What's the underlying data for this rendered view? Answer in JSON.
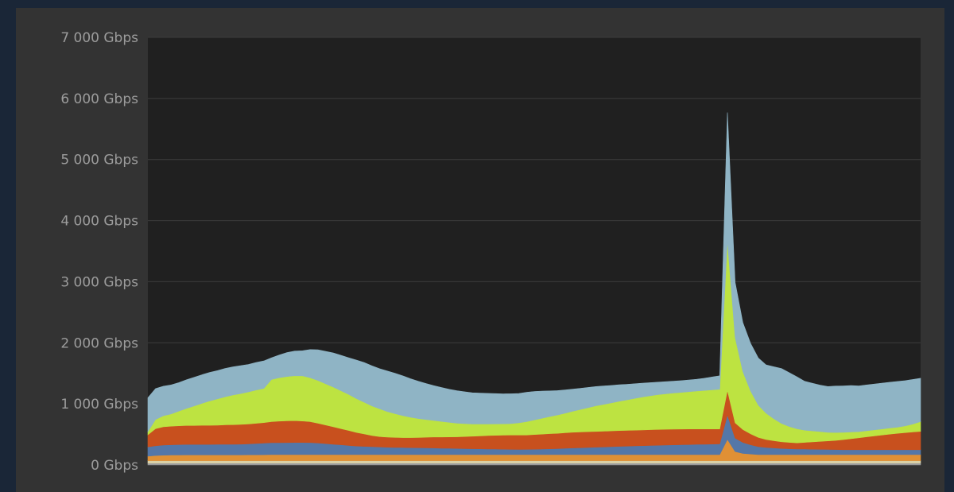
{
  "chart_data": {
    "type": "area",
    "stacked": true,
    "title": "",
    "xlabel": "",
    "ylabel": "",
    "ylim": [
      0,
      7000
    ],
    "y_ticks": [
      0,
      1000,
      2000,
      3000,
      4000,
      5000,
      6000,
      7000
    ],
    "y_tick_labels": [
      "0 Gbps",
      "1 000 Gbps",
      "2 000 Gbps",
      "3 000 Gbps",
      "4 000 Gbps",
      "5 000 Gbps",
      "6 000 Gbps",
      "7 000 Gbps"
    ],
    "grid": true,
    "legend": "none",
    "background": "#202020",
    "x": [
      0,
      1,
      2,
      3,
      4,
      5,
      6,
      7,
      8,
      9,
      10,
      11,
      12,
      13,
      14,
      15,
      16,
      17,
      18,
      19,
      20,
      21,
      22,
      23,
      24,
      25,
      26,
      27,
      28,
      29,
      30,
      31,
      32,
      33,
      34,
      35,
      36,
      37,
      38,
      39,
      40,
      41,
      42,
      43,
      44,
      45,
      46,
      47,
      48,
      49,
      50,
      51,
      52,
      53,
      54,
      55,
      56,
      57,
      58,
      59,
      60,
      61,
      62,
      63,
      64,
      65,
      66,
      67,
      68,
      69,
      70,
      71,
      72,
      73,
      74,
      75,
      76,
      77,
      78,
      79,
      80,
      81,
      82,
      83,
      84,
      85,
      86,
      87,
      88,
      89,
      90,
      91,
      92,
      93,
      94,
      95,
      96,
      97,
      98,
      99,
      100
    ],
    "series": [
      {
        "color": "#9a9a9a",
        "values": [
          30,
          30,
          30,
          30,
          30,
          30,
          30,
          30,
          30,
          30,
          30,
          30,
          30,
          30,
          30,
          30,
          30,
          30,
          30,
          30,
          30,
          30,
          30,
          30,
          30,
          30,
          30,
          30,
          30,
          30,
          30,
          30,
          30,
          30,
          30,
          30,
          30,
          30,
          30,
          30,
          30,
          30,
          30,
          30,
          30,
          30,
          30,
          30,
          30,
          30,
          30,
          30,
          30,
          30,
          30,
          30,
          30,
          30,
          30,
          30,
          30,
          30,
          30,
          30,
          30,
          30,
          30,
          30,
          30,
          30,
          30,
          30,
          30,
          30,
          30,
          30,
          30,
          30,
          30,
          30,
          30,
          30,
          30,
          30,
          30,
          30,
          30,
          30,
          30,
          30,
          30,
          30,
          30,
          30,
          30,
          30,
          30,
          30,
          30,
          30,
          30
        ]
      },
      {
        "color": "#d9d1a7",
        "values": [
          40,
          40,
          40,
          40,
          40,
          40,
          40,
          40,
          40,
          40,
          40,
          40,
          40,
          40,
          40,
          40,
          40,
          40,
          40,
          40,
          40,
          40,
          40,
          40,
          40,
          40,
          40,
          40,
          40,
          40,
          40,
          40,
          40,
          40,
          40,
          40,
          40,
          40,
          40,
          40,
          40,
          40,
          40,
          40,
          40,
          40,
          40,
          40,
          40,
          40,
          40,
          40,
          40,
          40,
          40,
          40,
          40,
          40,
          40,
          40,
          40,
          40,
          40,
          40,
          40,
          40,
          40,
          40,
          40,
          40,
          40,
          40,
          40,
          40,
          40,
          40,
          40,
          40,
          40,
          40,
          40,
          40,
          40,
          40,
          40,
          40,
          40,
          40,
          40,
          40,
          40,
          40,
          40,
          40,
          40,
          40,
          40,
          40,
          40,
          40,
          40
        ]
      },
      {
        "color": "#e09035",
        "values": [
          75,
          85,
          90,
          92,
          94,
          95,
          95,
          95,
          95,
          95,
          95,
          95,
          95,
          96,
          97,
          98,
          100,
          100,
          100,
          100,
          100,
          100,
          100,
          100,
          100,
          100,
          100,
          100,
          100,
          100,
          100,
          100,
          100,
          100,
          100,
          100,
          100,
          100,
          100,
          100,
          100,
          100,
          100,
          100,
          100,
          100,
          100,
          100,
          100,
          100,
          100,
          100,
          100,
          100,
          100,
          100,
          100,
          100,
          100,
          100,
          100,
          100,
          100,
          100,
          100,
          100,
          100,
          100,
          100,
          100,
          100,
          100,
          100,
          100,
          100,
          350,
          150,
          120,
          110,
          100,
          100,
          100,
          100,
          100,
          100,
          100,
          100,
          100,
          100,
          100,
          100,
          100,
          100,
          100,
          100,
          100,
          100,
          100,
          100,
          100,
          100
        ]
      },
      {
        "color": "#5477a8",
        "values": [
          150,
          160,
          165,
          168,
          170,
          172,
          172,
          172,
          172,
          173,
          174,
          175,
          176,
          180,
          185,
          190,
          195,
          196,
          197,
          198,
          198,
          197,
          190,
          180,
          170,
          160,
          150,
          140,
          135,
          130,
          125,
          120,
          118,
          116,
          114,
          112,
          110,
          108,
          105,
          103,
          100,
          98,
          96,
          94,
          92,
          90,
          88,
          86,
          85,
          86,
          88,
          90,
          94,
          98,
          103,
          108,
          112,
          117,
          121,
          125,
          130,
          135,
          138,
          142,
          146,
          150,
          153,
          156,
          159,
          162,
          165,
          168,
          170,
          172,
          175,
          400,
          220,
          180,
          150,
          130,
          118,
          108,
          100,
          95,
          92,
          90,
          88,
          86,
          84,
          82,
          80,
          80,
          80,
          80,
          80,
          80,
          80,
          80,
          80,
          80,
          80
        ]
      },
      {
        "color": "#c8501e",
        "values": [
          200,
          280,
          300,
          305,
          308,
          310,
          310,
          312,
          312,
          314,
          318,
          320,
          322,
          325,
          330,
          335,
          345,
          352,
          356,
          358,
          352,
          342,
          325,
          305,
          285,
          265,
          245,
          222,
          202,
          182,
          170,
          165,
          163,
          162,
          163,
          168,
          174,
          180,
          183,
          186,
          190,
          198,
          205,
          212,
          220,
          225,
          230,
          235,
          235,
          235,
          240,
          245,
          248,
          250,
          255,
          258,
          258,
          258,
          258,
          258,
          258,
          258,
          258,
          258,
          258,
          258,
          258,
          258,
          258,
          256,
          254,
          252,
          250,
          248,
          245,
          400,
          250,
          210,
          180,
          150,
          130,
          120,
          110,
          105,
          100,
          110,
          120,
          130,
          140,
          150,
          165,
          180,
          195,
          210,
          225,
          240,
          255,
          268,
          280,
          290,
          300
        ]
      },
      {
        "color": "#bde341",
        "values": [
          50,
          150,
          180,
          200,
          240,
          280,
          320,
          360,
          400,
          430,
          460,
          485,
          505,
          525,
          545,
          560,
          690,
          710,
          725,
          735,
          740,
          720,
          700,
          675,
          650,
          620,
          590,
          555,
          520,
          485,
          455,
          420,
          390,
          360,
          335,
          310,
          290,
          270,
          255,
          240,
          225,
          212,
          200,
          195,
          190,
          188,
          186,
          185,
          200,
          220,
          240,
          260,
          280,
          300,
          320,
          345,
          370,
          395,
          420,
          440,
          460,
          480,
          500,
          520,
          540,
          555,
          570,
          580,
          590,
          600,
          610,
          620,
          630,
          640,
          650,
          2450,
          1400,
          950,
          700,
          530,
          430,
          360,
          300,
          260,
          230,
          200,
          180,
          160,
          140,
          130,
          120,
          110,
          100,
          100,
          100,
          100,
          100,
          100,
          110,
          130,
          160
        ]
      },
      {
        "color": "#8fb4c5",
        "values": [
          555,
          505,
          485,
          475,
          466,
          468,
          468,
          468,
          466,
          463,
          463,
          460,
          457,
          450,
          450,
          450,
          355,
          373,
          392,
          404,
          410,
          460,
          500,
          530,
          560,
          580,
          600,
          630,
          650,
          655,
          655,
          663,
          660,
          650,
          630,
          610,
          590,
          570,
          555,
          540,
          530,
          520,
          510,
          505,
          500,
          495,
          490,
          490,
          480,
          480,
          465,
          445,
          420,
          400,
          380,
          360,
          345,
          330,
          315,
          300,
          285,
          270,
          255,
          240,
          225,
          215,
          205,
          200,
          195,
          193,
          192,
          193,
          200,
          210,
          220,
          2100,
          900,
          800,
          780,
          770,
          790,
          850,
          900,
          880,
          850,
          800,
          780,
          760,
          750,
          760,
          760,
          760,
          750,
          750,
          750,
          750,
          750,
          750,
          740,
          730,
          710
        ]
      }
    ]
  }
}
